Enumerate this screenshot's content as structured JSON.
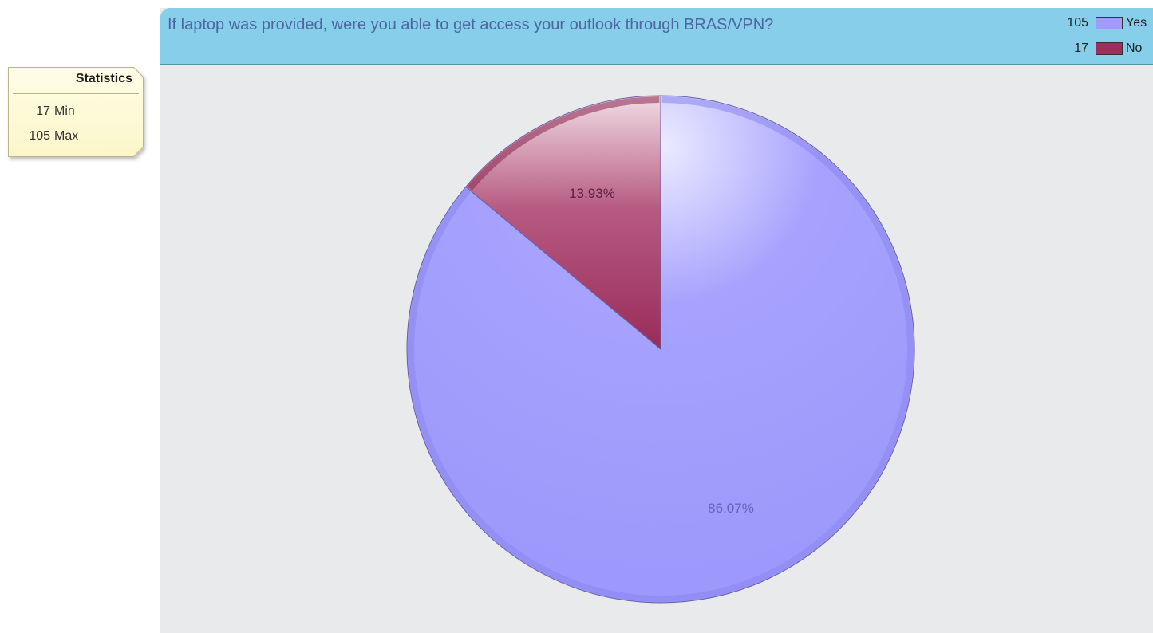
{
  "statistics": {
    "title": "Statistics",
    "rows": [
      {
        "value": "17",
        "label": "Min"
      },
      {
        "value": "105",
        "label": "Max"
      }
    ]
  },
  "chart_data": {
    "type": "pie",
    "title": "If laptop was provided, were you able to get access your outlook through BRAS/VPN?",
    "legend_position": "top-right",
    "slices": [
      {
        "name": "Yes",
        "value": 105,
        "percent_label": "86.07%",
        "color": "#a09cfc"
      },
      {
        "name": "No",
        "value": 17,
        "percent_label": "13.93%",
        "color": "#9e2f5c"
      }
    ]
  }
}
